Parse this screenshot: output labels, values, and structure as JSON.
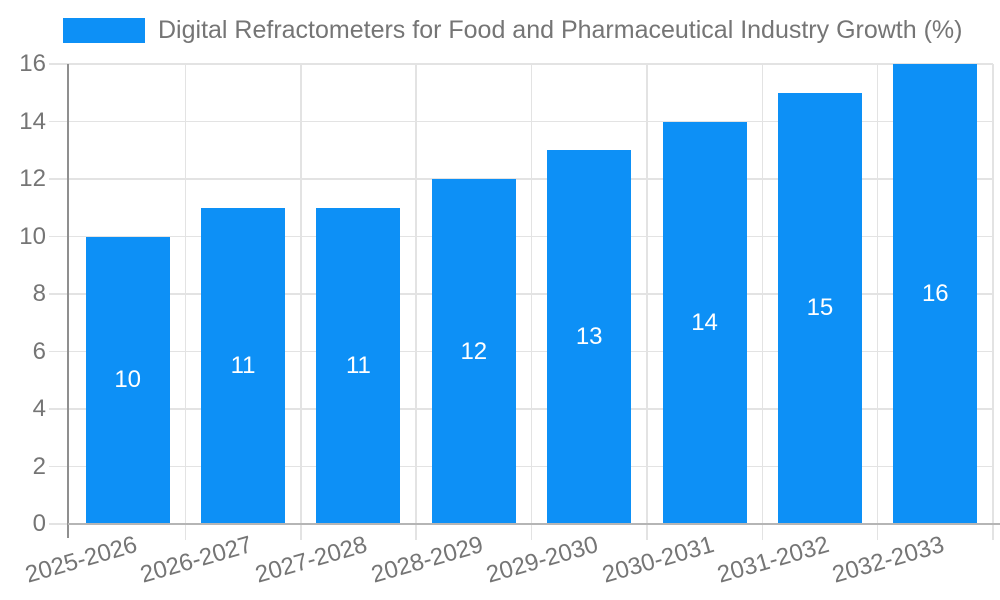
{
  "legend": {
    "label": "Digital Refractometers for Food and Pharmaceutical Industry Growth (%)"
  },
  "chart_data": {
    "type": "bar",
    "title": "Digital Refractometers for Food and Pharmaceutical Industry Growth (%)",
    "categories": [
      "2025-2026",
      "2026-2027",
      "2027-2028",
      "2028-2029",
      "2029-2030",
      "2030-2031",
      "2031-2032",
      "2032-2033"
    ],
    "values": [
      10,
      11,
      11,
      12,
      13,
      14,
      15,
      16
    ],
    "bar_labels": [
      "10",
      "11",
      "11",
      "12",
      "13",
      "14",
      "15",
      "16"
    ],
    "yticks": [
      0,
      2,
      4,
      6,
      8,
      10,
      12,
      14,
      16
    ],
    "ylim": [
      0,
      16
    ],
    "xlabel": "",
    "ylabel": "",
    "grid": true,
    "legend_position": "top-left",
    "x_label_rotation_deg": -16,
    "colors": {
      "bar": "#0d90f6",
      "bar_label": "#ffffff",
      "axis_text": "#757575",
      "grid_line": "#e3e3e3",
      "axis_line": "#b5b5b5",
      "y_axis_line": "#8f8f8f",
      "background": "#ffffff"
    }
  }
}
